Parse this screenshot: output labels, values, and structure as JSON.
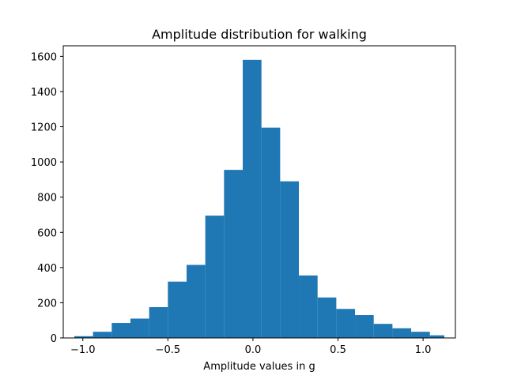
{
  "chart_data": {
    "type": "bar",
    "title": "Amplitude distribution for walking",
    "xlabel": "Amplitude values in g",
    "ylabel": "",
    "xlim": [
      -1.115,
      1.19
    ],
    "ylim": [
      0,
      1660
    ],
    "grid": false,
    "bar_color": "#1f77b4",
    "bin_edges": [
      -1.05,
      -0.94,
      -0.83,
      -0.72,
      -0.61,
      -0.5,
      -0.39,
      -0.28,
      -0.17,
      -0.06,
      0.05,
      0.16,
      0.27,
      0.38,
      0.49,
      0.6,
      0.71,
      0.82,
      0.93,
      1.04,
      1.125
    ],
    "values": [
      10,
      35,
      85,
      110,
      175,
      320,
      415,
      695,
      955,
      1580,
      1195,
      890,
      355,
      230,
      165,
      130,
      80,
      55,
      35,
      15
    ],
    "x_ticks": [
      -1.0,
      -0.5,
      0.0,
      0.5,
      1.0
    ],
    "x_tick_labels": [
      "−1.0",
      "−0.5",
      "0.0",
      "0.5",
      "1.0"
    ],
    "y_ticks": [
      0,
      200,
      400,
      600,
      800,
      1000,
      1200,
      1400,
      1600
    ],
    "y_tick_labels": [
      "0",
      "200",
      "400",
      "600",
      "800",
      "1000",
      "1200",
      "1400",
      "1600"
    ]
  }
}
